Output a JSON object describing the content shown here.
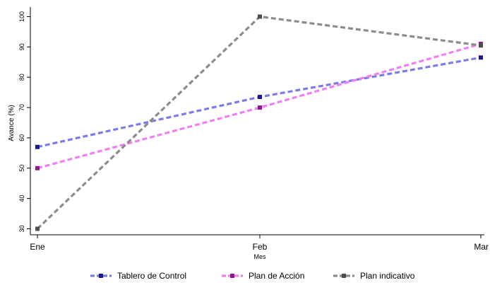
{
  "chart_data": {
    "type": "line",
    "title": "",
    "xlabel": "Mes",
    "ylabel": "Avance (%)",
    "categories": [
      "Ene",
      "Feb",
      "Mar"
    ],
    "ylim": [
      30,
      100
    ],
    "yticks": [
      30,
      40,
      50,
      60,
      70,
      80,
      90,
      100
    ],
    "grid": false,
    "legend_position": "bottom",
    "series": [
      {
        "name": "Tablero de Control",
        "values": [
          57,
          73.5,
          86.5
        ],
        "line_color": "#7b7bea",
        "marker_color": "#1a1a8c"
      },
      {
        "name": "Plan de Acción",
        "values": [
          50,
          70,
          91
        ],
        "line_color": "#f27ef2",
        "marker_color": "#8c1a8c"
      },
      {
        "name": "Plan indicativo",
        "values": [
          30,
          100,
          90.5
        ],
        "line_color": "#8c8c8c",
        "marker_color": "#4d4d4d"
      }
    ]
  }
}
